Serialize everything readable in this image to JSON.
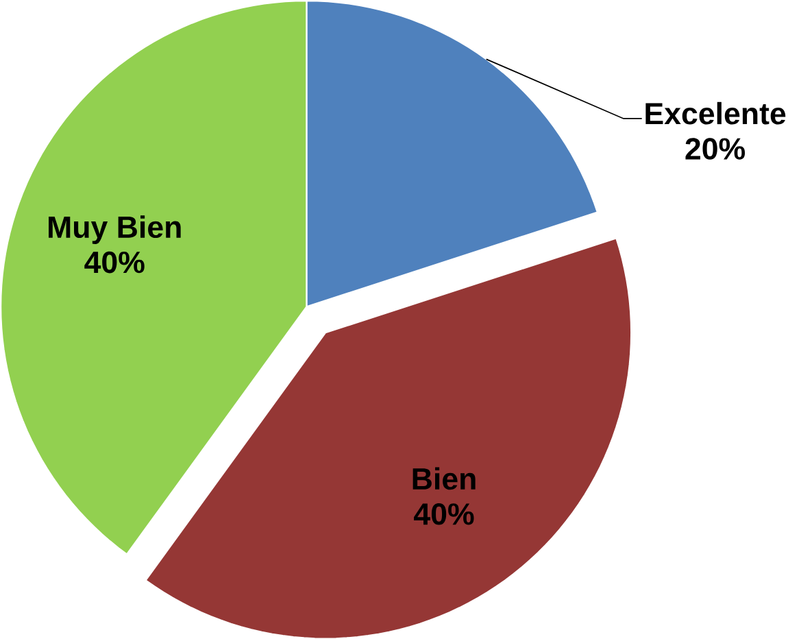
{
  "chart_data": {
    "type": "pie",
    "categories": [
      "Excelente",
      "Bien",
      "Muy Bien"
    ],
    "values": [
      20,
      40,
      40
    ],
    "colors": [
      "#4f81bd",
      "#953735",
      "#92d050"
    ],
    "value_labels": [
      "20%",
      "40%",
      "40%"
    ]
  }
}
